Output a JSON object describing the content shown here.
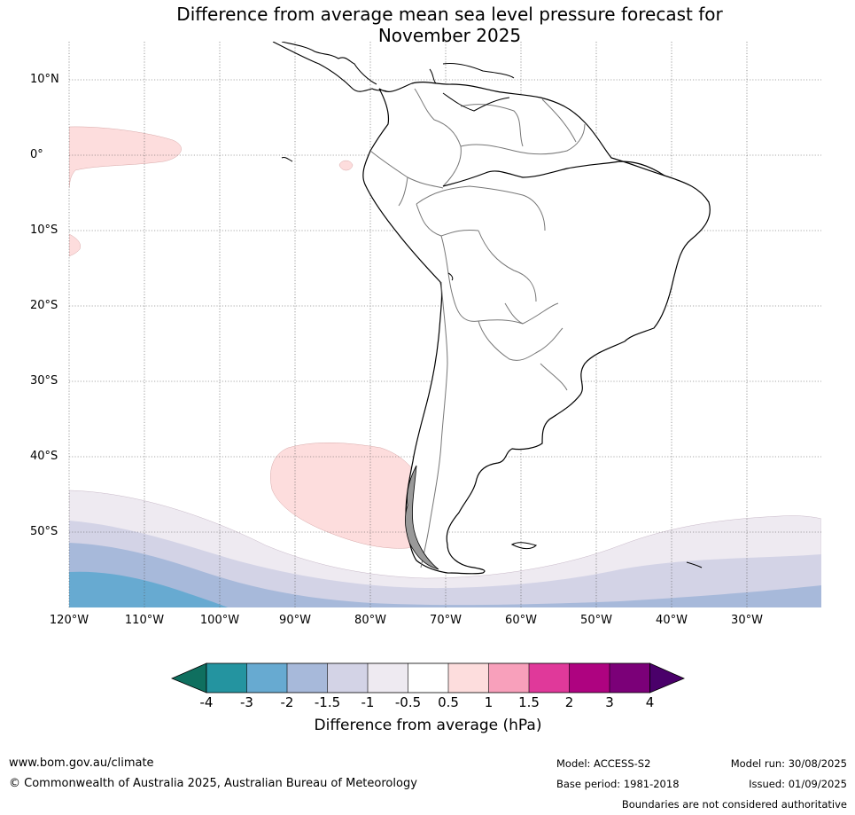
{
  "title_line1": "Difference from average mean sea level pressure forecast for",
  "title_line2": "November 2025",
  "lat_labels": [
    "10°N",
    "0°",
    "10°S",
    "20°S",
    "30°S",
    "40°S",
    "50°S"
  ],
  "lon_labels": [
    "120°W",
    "110°W",
    "100°W",
    "90°W",
    "80°W",
    "70°W",
    "60°W",
    "50°W",
    "40°W",
    "30°W"
  ],
  "colorbar": {
    "ticks": [
      "-4",
      "-3",
      "-2",
      "-1.5",
      "-1",
      "-0.5",
      "0.5",
      "1",
      "1.5",
      "2",
      "3",
      "4"
    ],
    "colors": [
      "#0f6f5f",
      "#2494a0",
      "#67aad1",
      "#a7b9da",
      "#d3d3e6",
      "#eeeaf1",
      "#ffffff",
      "#fddddd",
      "#f8a0bb",
      "#e0399a",
      "#ae0380",
      "#7b0078",
      "#4a006a"
    ],
    "label": "Difference from average (hPa)"
  },
  "footer": {
    "website": "www.bom.gov.au/climate",
    "copyright": "© Commonwealth of Australia 2025, Australian Bureau of Meteorology",
    "model": "Model: ACCESS-S2",
    "base_period": "Base period: 1981-2018",
    "model_run": "Model run: 30/08/2025",
    "issued": "Issued: 01/09/2025",
    "disclaimer": "Boundaries are not considered authoritative"
  }
}
